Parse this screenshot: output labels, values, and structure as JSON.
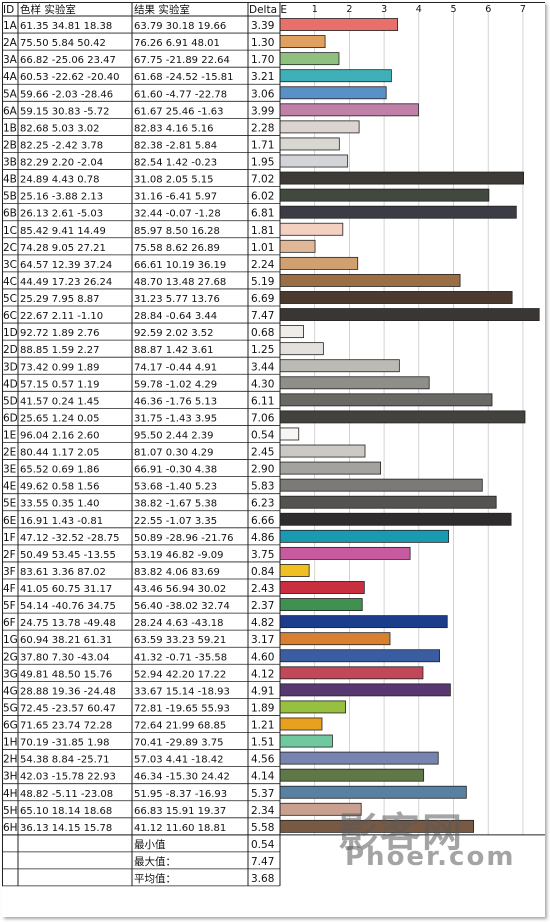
{
  "table": {
    "headers": {
      "id": "ID",
      "sample": "色样 实验室",
      "result": "结果 实验室",
      "delta": "Delta E"
    }
  },
  "summary": [
    {
      "label": "最小值",
      "value": "0.54"
    },
    {
      "label": "最大值：",
      "value": "7.47"
    },
    {
      "label": "平均值：",
      "value": "3.68"
    }
  ],
  "watermark": {
    "text": "影客网",
    "sub": "Phoer.com"
  },
  "chart_data": {
    "type": "bar",
    "orientation": "horizontal",
    "x_ticks": [
      1,
      2,
      3,
      4,
      5,
      6,
      7
    ],
    "xlim": [
      0,
      7.8
    ],
    "grid": true,
    "rows": [
      {
        "id": "1A",
        "sample": "61.35 34.81 18.38",
        "result": "63.79 30.18 19.66",
        "delta": "3.39",
        "value": 3.39,
        "color": "#e8706a"
      },
      {
        "id": "2A",
        "sample": "75.50 5.84 50.42",
        "result": "76.26 6.91 48.01",
        "delta": "1.30",
        "value": 1.3,
        "color": "#e0a060"
      },
      {
        "id": "3A",
        "sample": "66.82 -25.06 23.47",
        "result": "67.75 -21.89 22.64",
        "delta": "1.70",
        "value": 1.7,
        "color": "#8fc080"
      },
      {
        "id": "4A",
        "sample": "60.53 -22.62 -20.40",
        "result": "61.68 -24.52 -15.81",
        "delta": "3.21",
        "value": 3.21,
        "color": "#40b0b8"
      },
      {
        "id": "5A",
        "sample": "59.66 -2.03 -28.46",
        "result": "61.60 -4.77 -22.78",
        "delta": "3.06",
        "value": 3.06,
        "color": "#5a90c8"
      },
      {
        "id": "6A",
        "sample": "59.15 30.83 -5.72",
        "result": "61.67 25.46 -1.63",
        "delta": "3.99",
        "value": 3.99,
        "color": "#c080a8"
      },
      {
        "id": "1B",
        "sample": "82.68 5.03 3.02",
        "result": "82.83 4.16 5.16",
        "delta": "2.28",
        "value": 2.28,
        "color": "#dcd4d0"
      },
      {
        "id": "2B",
        "sample": "82.25 -2.42 3.78",
        "result": "82.38 -2.81 5.84",
        "delta": "1.71",
        "value": 1.71,
        "color": "#d8d8d0"
      },
      {
        "id": "3B",
        "sample": "82.29 2.20 -2.04",
        "result": "82.54 1.42 -0.23",
        "delta": "1.95",
        "value": 1.95,
        "color": "#d4d4d8"
      },
      {
        "id": "4B",
        "sample": "24.89 4.43 0.78",
        "result": "31.08 2.05 5.15",
        "delta": "7.02",
        "value": 7.02,
        "color": "#3e3a36"
      },
      {
        "id": "5B",
        "sample": "25.16 -3.88 2.13",
        "result": "31.16 -6.41 5.97",
        "delta": "6.02",
        "value": 6.02,
        "color": "#404840"
      },
      {
        "id": "6B",
        "sample": "26.13 2.61 -5.03",
        "result": "32.44 -0.07 -1.28",
        "delta": "6.81",
        "value": 6.81,
        "color": "#3c3c44"
      },
      {
        "id": "1C",
        "sample": "85.42 9.41 14.49",
        "result": "85.97 8.50 16.28",
        "delta": "1.81",
        "value": 1.81,
        "color": "#f4d0c0"
      },
      {
        "id": "2C",
        "sample": "74.28 9.05 27.21",
        "result": "75.58 8.62 26.89",
        "delta": "1.01",
        "value": 1.01,
        "color": "#e0b898"
      },
      {
        "id": "3C",
        "sample": "64.57 12.39 37.24",
        "result": "66.61 10.19 36.19",
        "delta": "2.24",
        "value": 2.24,
        "color": "#d0a070"
      },
      {
        "id": "4C",
        "sample": "44.49 17.23 26.24",
        "result": "48.70 13.48 27.68",
        "delta": "5.19",
        "value": 5.19,
        "color": "#9c6e44"
      },
      {
        "id": "5C",
        "sample": "25.29 7.95 8.87",
        "result": "31.23 5.77 13.76",
        "delta": "6.69",
        "value": 6.69,
        "color": "#4a3a30"
      },
      {
        "id": "6C",
        "sample": "22.67 2.11 -1.10",
        "result": "28.84 -0.64 3.44",
        "delta": "7.47",
        "value": 7.47,
        "color": "#3a3634"
      },
      {
        "id": "1D",
        "sample": "92.72 1.89 2.76",
        "result": "92.59 2.02 3.52",
        "delta": "0.68",
        "value": 0.68,
        "color": "#f0ece8"
      },
      {
        "id": "2D",
        "sample": "88.85 1.59 2.27",
        "result": "88.87 1.42 3.61",
        "delta": "1.25",
        "value": 1.25,
        "color": "#e4e0dc"
      },
      {
        "id": "3D",
        "sample": "73.42 0.99 1.89",
        "result": "74.17 -0.44 4.91",
        "delta": "3.44",
        "value": 3.44,
        "color": "#bcbab4"
      },
      {
        "id": "4D",
        "sample": "57.15 0.57 1.19",
        "result": "59.78 -1.02 4.29",
        "delta": "4.30",
        "value": 4.3,
        "color": "#908e88"
      },
      {
        "id": "5D",
        "sample": "41.57 0.24 1.45",
        "result": "46.36 -1.76 5.13",
        "delta": "6.11",
        "value": 6.11,
        "color": "#6a6864"
      },
      {
        "id": "6D",
        "sample": "25.65 1.24 0.05",
        "result": "31.75 -1.43 3.95",
        "delta": "7.06",
        "value": 7.06,
        "color": "#44423e"
      },
      {
        "id": "1E",
        "sample": "96.04 2.16 2.60",
        "result": "95.50 2.44 2.39",
        "delta": "0.54",
        "value": 0.54,
        "color": "#f8f6f4"
      },
      {
        "id": "2E",
        "sample": "80.44 1.17 2.05",
        "result": "81.07 0.30 4.29",
        "delta": "2.45",
        "value": 2.45,
        "color": "#ccc8c4"
      },
      {
        "id": "3E",
        "sample": "65.52 0.69 1.86",
        "result": "66.91 -0.30 4.38",
        "delta": "2.90",
        "value": 2.9,
        "color": "#a4a29e"
      },
      {
        "id": "4E",
        "sample": "49.62 0.58 1.56",
        "result": "53.68 -1.40 5.23",
        "delta": "5.83",
        "value": 5.83,
        "color": "#7c7a76"
      },
      {
        "id": "5E",
        "sample": "33.55 0.35 1.40",
        "result": "38.82 -1.67 5.38",
        "delta": "6.23",
        "value": 6.23,
        "color": "#555350"
      },
      {
        "id": "6E",
        "sample": "16.91 1.43 -0.81",
        "result": "22.55 -1.07 3.35",
        "delta": "6.66",
        "value": 6.66,
        "color": "#2e2c2c"
      },
      {
        "id": "1F",
        "sample": "47.12 -32.52 -28.75",
        "result": "50.89 -28.96 -21.76",
        "delta": "4.86",
        "value": 4.86,
        "color": "#1a9ab0"
      },
      {
        "id": "2F",
        "sample": "50.49 53.45 -13.55",
        "result": "53.19 46.82 -9.09",
        "delta": "3.75",
        "value": 3.75,
        "color": "#c85aa0"
      },
      {
        "id": "3F",
        "sample": "83.61 3.36 87.02",
        "result": "83.82 4.06 83.69",
        "delta": "0.84",
        "value": 0.84,
        "color": "#f0c020"
      },
      {
        "id": "4F",
        "sample": "41.05 60.75 31.17",
        "result": "43.46 56.94 30.02",
        "delta": "2.43",
        "value": 2.43,
        "color": "#c83040"
      },
      {
        "id": "5F",
        "sample": "54.14 -40.76 34.75",
        "result": "56.40 -38.02 32.74",
        "delta": "2.37",
        "value": 2.37,
        "color": "#409050"
      },
      {
        "id": "6F",
        "sample": "24.75 13.78 -49.48",
        "result": "28.24 4.63 -43.18",
        "delta": "4.82",
        "value": 4.82,
        "color": "#1c3c8c"
      },
      {
        "id": "1G",
        "sample": "60.94 38.21 61.31",
        "result": "63.59 33.23 59.21",
        "delta": "3.17",
        "value": 3.17,
        "color": "#d88030"
      },
      {
        "id": "2G",
        "sample": "37.80 7.30 -43.04",
        "result": "41.32 -0.71 -35.58",
        "delta": "4.60",
        "value": 4.6,
        "color": "#3a5ca0"
      },
      {
        "id": "3G",
        "sample": "49.81 48.50 15.76",
        "result": "52.94 42.20 17.22",
        "delta": "4.12",
        "value": 4.12,
        "color": "#c04858"
      },
      {
        "id": "4G",
        "sample": "28.88 19.36 -24.48",
        "result": "33.67 15.14 -18.93",
        "delta": "4.91",
        "value": 4.91,
        "color": "#583870"
      },
      {
        "id": "5G",
        "sample": "72.45 -23.57 60.47",
        "result": "72.81 -19.65 55.93",
        "delta": "1.89",
        "value": 1.89,
        "color": "#98c040"
      },
      {
        "id": "6G",
        "sample": "71.65 23.74 72.28",
        "result": "72.64 21.99 68.85",
        "delta": "1.21",
        "value": 1.21,
        "color": "#e8a020"
      },
      {
        "id": "1H",
        "sample": "70.19 -31.85 1.98",
        "result": "70.41 -29.89 3.75",
        "delta": "1.51",
        "value": 1.51,
        "color": "#70c8a0"
      },
      {
        "id": "2H",
        "sample": "54.38 8.84 -25.71",
        "result": "57.03 4.41 -18.42",
        "delta": "4.56",
        "value": 4.56,
        "color": "#7884b0"
      },
      {
        "id": "3H",
        "sample": "42.03 -15.78 22.93",
        "result": "46.34 -15.30 24.42",
        "delta": "4.14",
        "value": 4.14,
        "color": "#607848"
      },
      {
        "id": "4H",
        "sample": "48.82 -5.11 -23.08",
        "result": "51.95 -8.37 -16.93",
        "delta": "5.37",
        "value": 5.37,
        "color": "#5880a0"
      },
      {
        "id": "5H",
        "sample": "65.10 18.14 18.68",
        "result": "66.83 15.91 19.37",
        "delta": "2.34",
        "value": 2.34,
        "color": "#c8a090"
      },
      {
        "id": "6H",
        "sample": "36.13 14.15 15.78",
        "result": "41.12 11.60 18.81",
        "delta": "5.58",
        "value": 5.58,
        "color": "#785a44"
      }
    ]
  }
}
